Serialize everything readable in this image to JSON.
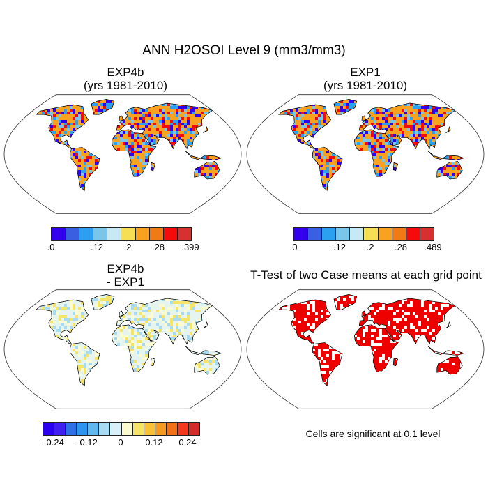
{
  "title": "ANN H2OSOI Level 9 (mm3/mm3)",
  "panels": [
    {
      "line1": "EXP4b",
      "line2": "(yrs 1981-2010)"
    },
    {
      "line1": "EXP1",
      "line2": "(yrs 1981-2010)"
    },
    {
      "line1": "EXP4b",
      "line2": "- EXP1"
    },
    {
      "line1": "T-Test of two Case means at each grid point",
      "line2": ""
    }
  ],
  "colorbars": [
    {
      "colors": [
        "#3300ee",
        "#3a5fe0",
        "#2b9ff0",
        "#79c6ea",
        "#c6e9f4",
        "#f6df55",
        "#f8a21f",
        "#f07a14",
        "#f50b0b",
        "#d63030"
      ],
      "labels": [
        ".0",
        ".12",
        ".2",
        ".28",
        ".399"
      ]
    },
    {
      "colors": [
        "#3300ee",
        "#3a5fe0",
        "#2b9ff0",
        "#79c6ea",
        "#c6e9f4",
        "#f6df55",
        "#f8a21f",
        "#f07a14",
        "#f50b0b",
        "#d63030"
      ],
      "labels": [
        ".0",
        ".12",
        ".2",
        ".28",
        ".489"
      ]
    },
    {
      "colors": [
        "#2a00ee",
        "#3f1ff0",
        "#3070e6",
        "#2f94ee",
        "#62b7ee",
        "#a6dbf2",
        "#d8f0f8",
        "#fafbd0",
        "#f6e468",
        "#f8c237",
        "#f59a20",
        "#f27016",
        "#f13a1e",
        "#d62b2b"
      ],
      "labels": [
        "-0.24",
        "-0.12",
        "0",
        "0.12",
        "0.24"
      ]
    }
  ],
  "significance_note": "Cells are significant at 0.1 level",
  "colors": {
    "significant": "#ee0000",
    "land_outline": "#000000"
  }
}
